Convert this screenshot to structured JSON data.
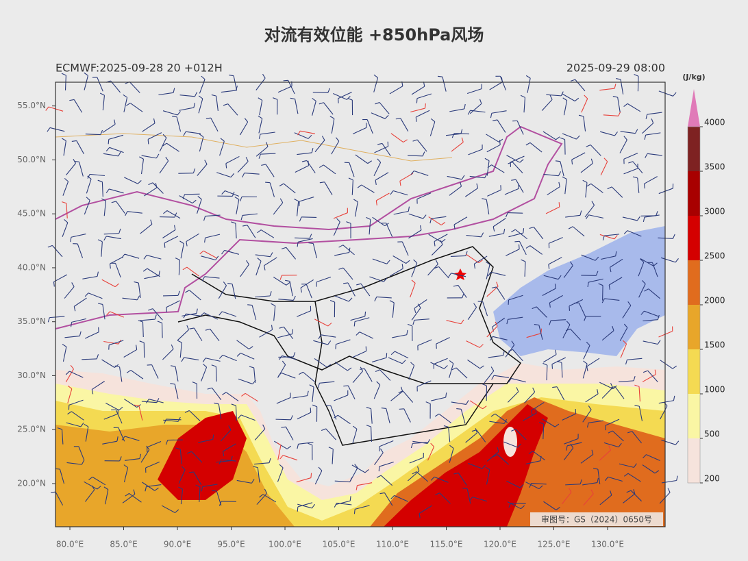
{
  "title": "对流有效位能 +850hPa风场",
  "subtitle_left": "ECMWF:2025-09-28 20 +012H",
  "subtitle_right": "2025-09-29 08:00",
  "credit": "审图号：GS（2024）0650号",
  "map": {
    "xlim": [
      78.66,
      135.35
    ],
    "ylim": [
      16.0,
      57.2
    ],
    "xticks": [
      {
        "value": 80,
        "label": "80.0°E"
      },
      {
        "value": 85,
        "label": "85.0°E"
      },
      {
        "value": 90,
        "label": "90.0°E"
      },
      {
        "value": 95,
        "label": "95.0°E"
      },
      {
        "value": 100,
        "label": "100.0°E"
      },
      {
        "value": 105,
        "label": "105.0°E"
      },
      {
        "value": 110,
        "label": "110.0°E"
      },
      {
        "value": 115,
        "label": "115.0°E"
      },
      {
        "value": 120,
        "label": "120.0°E"
      },
      {
        "value": 125,
        "label": "125.0°E"
      },
      {
        "value": 130,
        "label": "130.0°E"
      }
    ],
    "yticks": [
      {
        "value": 20,
        "label": "20.0°N"
      },
      {
        "value": 25,
        "label": "25.0°N"
      },
      {
        "value": 30,
        "label": "30.0°N"
      },
      {
        "value": 35,
        "label": "35.0°N"
      },
      {
        "value": 40,
        "label": "40.0°N"
      },
      {
        "value": 45,
        "label": "45.0°N"
      },
      {
        "value": 50,
        "label": "50.0°N"
      },
      {
        "value": 55,
        "label": "55.0°N"
      }
    ]
  },
  "colorbar": {
    "unit": "(J/kg)",
    "levels": [
      200,
      500,
      1000,
      1500,
      2000,
      2500,
      3000,
      3500,
      4000
    ],
    "colors": [
      "#f6e3dc",
      "#faf6a4",
      "#f4da52",
      "#e8a62a",
      "#e06c1e",
      "#d40000",
      "#a80000",
      "#7e2222"
    ],
    "extend_color": "#e07ab8"
  }
}
